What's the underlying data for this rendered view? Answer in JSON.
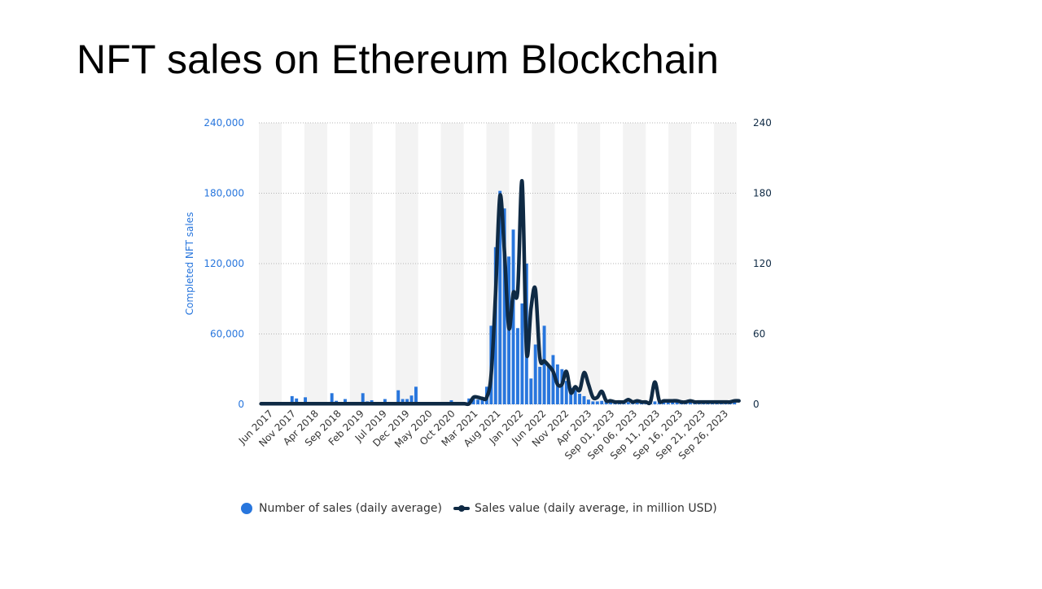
{
  "title": "NFT sales on Ethereum Blockchain",
  "chart_data": {
    "type": "bar",
    "ylabel_left": "Completed NFT sales",
    "ylim_left": [
      0,
      240000
    ],
    "ylim_right": [
      0,
      240
    ],
    "yticks_left": [
      "0",
      "60,000",
      "120,000",
      "180,000",
      "240,000"
    ],
    "yticks_right": [
      "0",
      "60",
      "120",
      "180",
      "240"
    ],
    "x_tick_labels": [
      "Jun 2017",
      "Nov 2017",
      "Apr 2018",
      "Sep 2018",
      "Feb 2019",
      "Jul 2019",
      "Dec 2019",
      "May 2020",
      "Oct 2020",
      "Mar 2021",
      "Aug 2021",
      "Jan 2022",
      "Jun 2022",
      "Nov 2022",
      "Apr 2023",
      "Sep 01, 2023",
      "Sep 06, 2023",
      "Sep 11, 2023",
      "Sep 16, 2023",
      "Sep 21, 2023",
      "Sep 26, 2023"
    ],
    "grid": true,
    "legend_position": "bottom",
    "series": [
      {
        "name": "Number of sales (daily average)",
        "type": "bar",
        "axis": "left",
        "color": "#2876dd",
        "values": [
          500,
          500,
          800,
          600,
          400,
          1200,
          500,
          7000,
          5000,
          1500,
          6000,
          1000,
          1200,
          800,
          600,
          1000,
          9500,
          3000,
          1500,
          4500,
          2000,
          1000,
          1500,
          9500,
          2500,
          3500,
          1000,
          1200,
          4500,
          1000,
          1000,
          12000,
          4500,
          4500,
          7500,
          15000,
          800,
          800,
          600,
          500,
          800,
          600,
          500,
          3500,
          1000,
          800,
          1000,
          5000,
          6000,
          4000,
          6000,
          15000,
          67000,
          134000,
          182000,
          167000,
          126000,
          149000,
          65000,
          86000,
          120000,
          22000,
          51000,
          32000,
          67000,
          33000,
          42000,
          34000,
          30000,
          20000,
          14000,
          12000,
          9000,
          7000,
          4000,
          2500,
          2500,
          3000,
          4000,
          3000,
          2500,
          2000,
          2500,
          2000,
          2000,
          3000,
          2000,
          2000,
          2000,
          2500,
          2500,
          3000,
          2000,
          3000,
          2000,
          2000,
          2000,
          2000,
          2500,
          2000,
          2000,
          2500,
          2000,
          2000,
          2500,
          3000,
          3000,
          3000
        ]
      },
      {
        "name": "Sales value (daily average, in million USD)",
        "type": "line",
        "axis": "right",
        "color": "#0f2a44",
        "values": [
          0.5,
          0.5,
          0.5,
          0.5,
          0.5,
          0.5,
          0.5,
          0.5,
          0.5,
          0.5,
          0.5,
          0.5,
          0.5,
          0.5,
          0.5,
          0.5,
          0.5,
          0.5,
          0.5,
          0.5,
          0.5,
          0.5,
          0.5,
          0.5,
          0.5,
          0.5,
          0.5,
          0.5,
          0.5,
          0.5,
          0.5,
          0.5,
          0.5,
          0.5,
          0.5,
          0.5,
          0.5,
          0.5,
          0.5,
          0.5,
          0.5,
          0.5,
          0.5,
          0.5,
          0.5,
          0.5,
          0.5,
          0.5,
          6,
          6,
          5,
          6,
          25,
          95,
          178,
          130,
          65,
          95,
          97,
          190,
          45,
          82,
          98,
          40,
          37,
          33,
          28,
          17,
          17,
          28,
          10,
          15,
          12,
          27,
          17,
          6,
          6,
          11,
          3,
          3,
          2,
          2,
          2,
          4,
          2,
          3,
          2,
          2,
          2,
          19,
          3,
          3,
          3,
          3,
          3,
          2,
          2,
          3,
          2,
          2,
          2,
          2,
          2,
          2,
          2,
          2,
          2,
          3,
          3
        ]
      }
    ]
  }
}
